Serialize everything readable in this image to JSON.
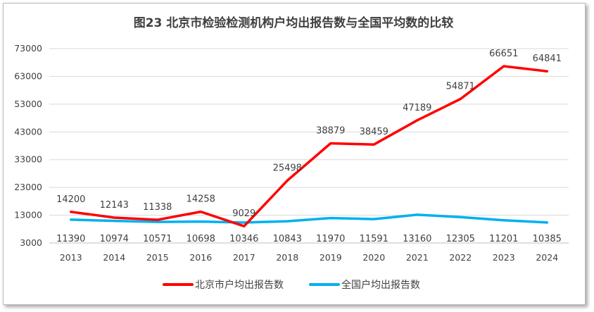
{
  "chart_data": {
    "type": "line",
    "title": "图23 北京市检验检测机构户均出报告数与全国平均数的比较",
    "xlabel": "",
    "ylabel": "",
    "categories": [
      "2013",
      "2014",
      "2015",
      "2016",
      "2017",
      "2018",
      "2019",
      "2020",
      "2021",
      "2022",
      "2023",
      "2024"
    ],
    "y_ticks": [
      "3000",
      "13000",
      "23000",
      "33000",
      "43000",
      "53000",
      "63000",
      "73000"
    ],
    "ylim": [
      3000,
      73000
    ],
    "grid": true,
    "legend_position": "bottom",
    "series": [
      {
        "name": "北京市户均出报告数",
        "color": "#ff0000",
        "values": [
          14200,
          12143,
          11338,
          14258,
          9029,
          25498,
          38879,
          38459,
          47189,
          54871,
          66651,
          64841
        ],
        "labels": [
          "14200",
          "12143",
          "11338",
          "14258",
          "9029",
          "25498",
          "38879",
          "38459",
          "47189",
          "54871",
          "66651",
          "64841"
        ]
      },
      {
        "name": "全国户均出报告数",
        "color": "#00b0f0",
        "values": [
          11390,
          10974,
          10571,
          10698,
          10346,
          10843,
          11970,
          11591,
          13160,
          12305,
          11201,
          10385
        ],
        "labels": [
          "11390",
          "10974",
          "10571",
          "10698",
          "10346",
          "10843",
          "11970",
          "11591",
          "13160",
          "12305",
          "11201",
          "10385"
        ]
      }
    ]
  }
}
